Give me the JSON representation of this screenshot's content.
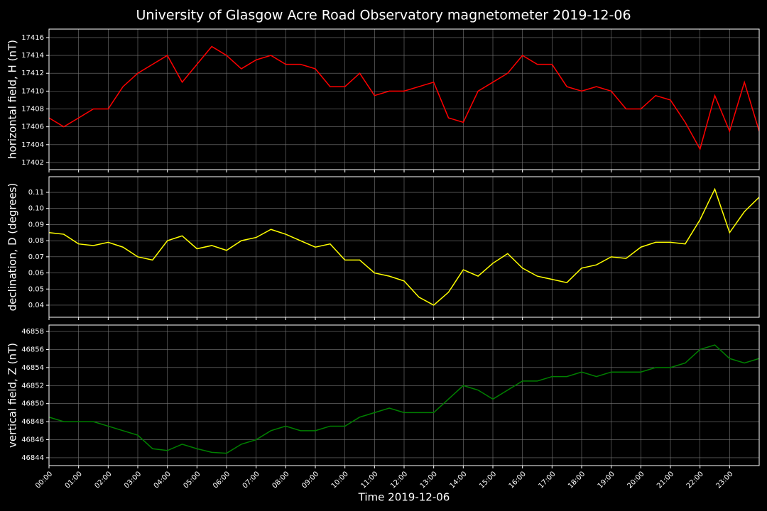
{
  "title": "University of Glasgow Acre Road Observatory magnetometer 2019-12-06",
  "chart_data": [
    {
      "type": "line",
      "ylabel": "horizontal field, H (nT)",
      "grid": true,
      "x": [
        0,
        0.5,
        1,
        1.5,
        2,
        2.5,
        3,
        3.5,
        4,
        4.5,
        5,
        5.5,
        6,
        6.5,
        7,
        7.5,
        8,
        8.5,
        9,
        9.5,
        10,
        10.5,
        11,
        11.5,
        12,
        12.5,
        13,
        13.5,
        14,
        14.5,
        15,
        15.5,
        16,
        16.5,
        17,
        17.5,
        18,
        18.5,
        19,
        19.5,
        20,
        20.5,
        21,
        21.5,
        22,
        22.5,
        23,
        23.5,
        24
      ],
      "xlim": [
        0,
        24
      ],
      "ylim": [
        17401.2,
        17416.95
      ],
      "yticks": [
        17402,
        17404,
        17406,
        17408,
        17410,
        17412,
        17414,
        17416
      ],
      "series": [
        {
          "name": "H",
          "color": "#ff0000",
          "values": [
            17407,
            17406,
            17407,
            17408,
            17408,
            17410.5,
            17412,
            17413,
            17414,
            17411,
            17413,
            17415,
            17414,
            17412.5,
            17413.5,
            17414,
            17413,
            17413,
            17412.5,
            17410.5,
            17410.5,
            17412,
            17409.5,
            17410,
            17410,
            17410.5,
            17411,
            17407,
            17406.5,
            17410,
            17411,
            17412,
            17414,
            17413,
            17413,
            17410.5,
            17410,
            17410.5,
            17410,
            17408,
            17408,
            17409.5,
            17409,
            17406.5,
            17403.5,
            17409.5,
            17405.5,
            17411,
            17405.5
          ]
        }
      ]
    },
    {
      "type": "line",
      "ylabel": "declination, D (degrees)",
      "grid": true,
      "x": [
        0,
        0.5,
        1,
        1.5,
        2,
        2.5,
        3,
        3.5,
        4,
        4.5,
        5,
        5.5,
        6,
        6.5,
        7,
        7.5,
        8,
        8.5,
        9,
        9.5,
        10,
        10.5,
        11,
        11.5,
        12,
        12.5,
        13,
        13.5,
        14,
        14.5,
        15,
        15.5,
        16,
        16.5,
        17,
        17.5,
        18,
        18.5,
        19,
        19.5,
        20,
        20.5,
        21,
        21.5,
        22,
        22.5,
        23,
        23.5,
        24
      ],
      "xlim": [
        0,
        24
      ],
      "ylim": [
        0.0325,
        0.1197
      ],
      "yticks": [
        0.04,
        0.05,
        0.06,
        0.07,
        0.08,
        {
          "value": 0.09,
          "label": "0.09"
        },
        {
          "value": 0.1,
          "label": "0.10"
        },
        0.11
      ],
      "series": [
        {
          "name": "D",
          "color": "#ffff00",
          "values": [
            0.085,
            0.084,
            0.078,
            0.077,
            0.079,
            0.076,
            0.07,
            0.068,
            0.08,
            0.083,
            0.075,
            0.077,
            0.074,
            0.08,
            0.082,
            0.087,
            0.084,
            0.08,
            0.076,
            0.078,
            0.068,
            0.068,
            0.06,
            0.058,
            0.055,
            0.045,
            0.04,
            0.048,
            0.062,
            0.058,
            0.066,
            0.072,
            0.063,
            0.058,
            0.056,
            0.054,
            0.063,
            0.065,
            0.07,
            0.069,
            0.076,
            0.079,
            0.079,
            0.078,
            0.093,
            0.112,
            0.085,
            0.098,
            0.107
          ]
        }
      ]
    },
    {
      "type": "line",
      "ylabel": "vertical field, Z (nT)",
      "xlabel": "Time 2019-12-06",
      "grid": true,
      "x": [
        0,
        0.5,
        1,
        1.5,
        2,
        2.5,
        3,
        3.5,
        4,
        4.5,
        5,
        5.5,
        6,
        6.5,
        7,
        7.5,
        8,
        8.5,
        9,
        9.5,
        10,
        10.5,
        11,
        11.5,
        12,
        12.5,
        13,
        13.5,
        14,
        14.5,
        15,
        15.5,
        16,
        16.5,
        17,
        17.5,
        18,
        18.5,
        19,
        19.5,
        20,
        20.5,
        21,
        21.5,
        22,
        22.5,
        23,
        23.5,
        24
      ],
      "xlim": [
        0,
        24
      ],
      "ylim": [
        46843.13,
        46858.71
      ],
      "xticks": [
        {
          "value": 0,
          "label": "00:00"
        },
        {
          "value": 1,
          "label": "01:00"
        },
        {
          "value": 2,
          "label": "02:00"
        },
        {
          "value": 3,
          "label": "03:00"
        },
        {
          "value": 4,
          "label": "04:00"
        },
        {
          "value": 5,
          "label": "05:00"
        },
        {
          "value": 6,
          "label": "06:00"
        },
        {
          "value": 7,
          "label": "07:00"
        },
        {
          "value": 8,
          "label": "08:00"
        },
        {
          "value": 9,
          "label": "09:00"
        },
        {
          "value": 10,
          "label": "10:00"
        },
        {
          "value": 11,
          "label": "11:00"
        },
        {
          "value": 12,
          "label": "12:00"
        },
        {
          "value": 13,
          "label": "13:00"
        },
        {
          "value": 14,
          "label": "14:00"
        },
        {
          "value": 15,
          "label": "15:00"
        },
        {
          "value": 16,
          "label": "16:00"
        },
        {
          "value": 17,
          "label": "17:00"
        },
        {
          "value": 18,
          "label": "18:00"
        },
        {
          "value": 19,
          "label": "19:00"
        },
        {
          "value": 20,
          "label": "20:00"
        },
        {
          "value": 21,
          "label": "21:00"
        },
        {
          "value": 22,
          "label": "22:00"
        },
        {
          "value": 23,
          "label": "23:00"
        }
      ],
      "yticks": [
        46844,
        46846,
        46848,
        46850,
        46852,
        46854,
        46856,
        46858
      ],
      "series": [
        {
          "name": "Z",
          "color": "#008000",
          "values": [
            46848.5,
            46848,
            46848,
            46848,
            46847.5,
            46847,
            46846.5,
            46845,
            46844.8,
            46845.5,
            46845,
            46844.6,
            46844.5,
            46845.5,
            46846,
            46847,
            46847.5,
            46847,
            46847,
            46847.5,
            46847.5,
            46848.5,
            46849,
            46849.5,
            46849,
            46849,
            46849,
            46850.5,
            46852,
            46851.5,
            46850.5,
            46851.5,
            46852.5,
            46852.5,
            46853,
            46853,
            46853.5,
            46853,
            46853.5,
            46853.5,
            46853.5,
            46854,
            46854,
            46854.5,
            46856,
            46856.5,
            46855,
            46854.5,
            46855
          ]
        }
      ]
    }
  ]
}
